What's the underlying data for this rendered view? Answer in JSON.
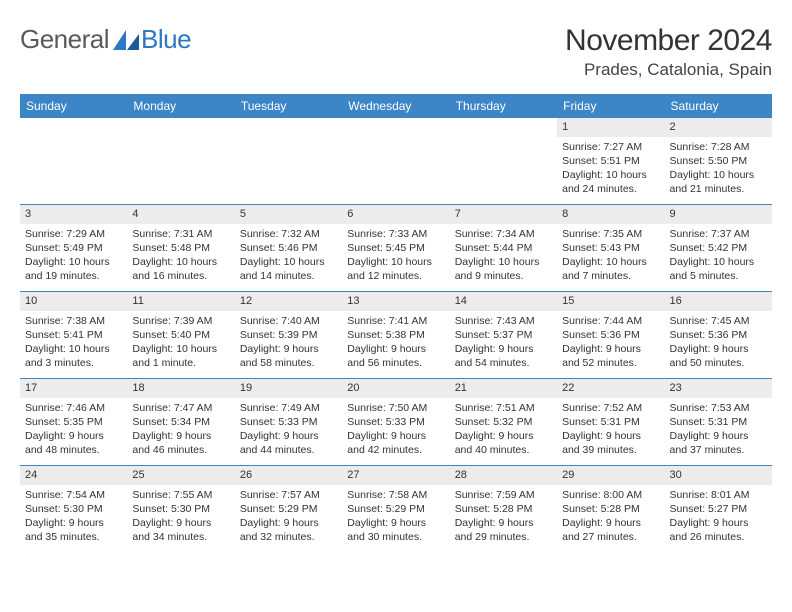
{
  "logo": {
    "text1": "General",
    "text2": "Blue"
  },
  "title": "November 2024",
  "location": "Prades, Catalonia, Spain",
  "colors": {
    "header_bg": "#3c85c6",
    "header_text": "#ffffff",
    "grey_bar": "#ececec",
    "rule": "#3c85c6",
    "body_text": "#333333"
  },
  "dow": [
    "Sunday",
    "Monday",
    "Tuesday",
    "Wednesday",
    "Thursday",
    "Friday",
    "Saturday"
  ],
  "weeks": [
    [
      {
        "n": "",
        "sr": "",
        "ss": "",
        "dl1": "",
        "dl2": ""
      },
      {
        "n": "",
        "sr": "",
        "ss": "",
        "dl1": "",
        "dl2": ""
      },
      {
        "n": "",
        "sr": "",
        "ss": "",
        "dl1": "",
        "dl2": ""
      },
      {
        "n": "",
        "sr": "",
        "ss": "",
        "dl1": "",
        "dl2": ""
      },
      {
        "n": "",
        "sr": "",
        "ss": "",
        "dl1": "",
        "dl2": ""
      },
      {
        "n": "1",
        "sr": "Sunrise: 7:27 AM",
        "ss": "Sunset: 5:51 PM",
        "dl1": "Daylight: 10 hours",
        "dl2": "and 24 minutes."
      },
      {
        "n": "2",
        "sr": "Sunrise: 7:28 AM",
        "ss": "Sunset: 5:50 PM",
        "dl1": "Daylight: 10 hours",
        "dl2": "and 21 minutes."
      }
    ],
    [
      {
        "n": "3",
        "sr": "Sunrise: 7:29 AM",
        "ss": "Sunset: 5:49 PM",
        "dl1": "Daylight: 10 hours",
        "dl2": "and 19 minutes."
      },
      {
        "n": "4",
        "sr": "Sunrise: 7:31 AM",
        "ss": "Sunset: 5:48 PM",
        "dl1": "Daylight: 10 hours",
        "dl2": "and 16 minutes."
      },
      {
        "n": "5",
        "sr": "Sunrise: 7:32 AM",
        "ss": "Sunset: 5:46 PM",
        "dl1": "Daylight: 10 hours",
        "dl2": "and 14 minutes."
      },
      {
        "n": "6",
        "sr": "Sunrise: 7:33 AM",
        "ss": "Sunset: 5:45 PM",
        "dl1": "Daylight: 10 hours",
        "dl2": "and 12 minutes."
      },
      {
        "n": "7",
        "sr": "Sunrise: 7:34 AM",
        "ss": "Sunset: 5:44 PM",
        "dl1": "Daylight: 10 hours",
        "dl2": "and 9 minutes."
      },
      {
        "n": "8",
        "sr": "Sunrise: 7:35 AM",
        "ss": "Sunset: 5:43 PM",
        "dl1": "Daylight: 10 hours",
        "dl2": "and 7 minutes."
      },
      {
        "n": "9",
        "sr": "Sunrise: 7:37 AM",
        "ss": "Sunset: 5:42 PM",
        "dl1": "Daylight: 10 hours",
        "dl2": "and 5 minutes."
      }
    ],
    [
      {
        "n": "10",
        "sr": "Sunrise: 7:38 AM",
        "ss": "Sunset: 5:41 PM",
        "dl1": "Daylight: 10 hours",
        "dl2": "and 3 minutes."
      },
      {
        "n": "11",
        "sr": "Sunrise: 7:39 AM",
        "ss": "Sunset: 5:40 PM",
        "dl1": "Daylight: 10 hours",
        "dl2": "and 1 minute."
      },
      {
        "n": "12",
        "sr": "Sunrise: 7:40 AM",
        "ss": "Sunset: 5:39 PM",
        "dl1": "Daylight: 9 hours",
        "dl2": "and 58 minutes."
      },
      {
        "n": "13",
        "sr": "Sunrise: 7:41 AM",
        "ss": "Sunset: 5:38 PM",
        "dl1": "Daylight: 9 hours",
        "dl2": "and 56 minutes."
      },
      {
        "n": "14",
        "sr": "Sunrise: 7:43 AM",
        "ss": "Sunset: 5:37 PM",
        "dl1": "Daylight: 9 hours",
        "dl2": "and 54 minutes."
      },
      {
        "n": "15",
        "sr": "Sunrise: 7:44 AM",
        "ss": "Sunset: 5:36 PM",
        "dl1": "Daylight: 9 hours",
        "dl2": "and 52 minutes."
      },
      {
        "n": "16",
        "sr": "Sunrise: 7:45 AM",
        "ss": "Sunset: 5:36 PM",
        "dl1": "Daylight: 9 hours",
        "dl2": "and 50 minutes."
      }
    ],
    [
      {
        "n": "17",
        "sr": "Sunrise: 7:46 AM",
        "ss": "Sunset: 5:35 PM",
        "dl1": "Daylight: 9 hours",
        "dl2": "and 48 minutes."
      },
      {
        "n": "18",
        "sr": "Sunrise: 7:47 AM",
        "ss": "Sunset: 5:34 PM",
        "dl1": "Daylight: 9 hours",
        "dl2": "and 46 minutes."
      },
      {
        "n": "19",
        "sr": "Sunrise: 7:49 AM",
        "ss": "Sunset: 5:33 PM",
        "dl1": "Daylight: 9 hours",
        "dl2": "and 44 minutes."
      },
      {
        "n": "20",
        "sr": "Sunrise: 7:50 AM",
        "ss": "Sunset: 5:33 PM",
        "dl1": "Daylight: 9 hours",
        "dl2": "and 42 minutes."
      },
      {
        "n": "21",
        "sr": "Sunrise: 7:51 AM",
        "ss": "Sunset: 5:32 PM",
        "dl1": "Daylight: 9 hours",
        "dl2": "and 40 minutes."
      },
      {
        "n": "22",
        "sr": "Sunrise: 7:52 AM",
        "ss": "Sunset: 5:31 PM",
        "dl1": "Daylight: 9 hours",
        "dl2": "and 39 minutes."
      },
      {
        "n": "23",
        "sr": "Sunrise: 7:53 AM",
        "ss": "Sunset: 5:31 PM",
        "dl1": "Daylight: 9 hours",
        "dl2": "and 37 minutes."
      }
    ],
    [
      {
        "n": "24",
        "sr": "Sunrise: 7:54 AM",
        "ss": "Sunset: 5:30 PM",
        "dl1": "Daylight: 9 hours",
        "dl2": "and 35 minutes."
      },
      {
        "n": "25",
        "sr": "Sunrise: 7:55 AM",
        "ss": "Sunset: 5:30 PM",
        "dl1": "Daylight: 9 hours",
        "dl2": "and 34 minutes."
      },
      {
        "n": "26",
        "sr": "Sunrise: 7:57 AM",
        "ss": "Sunset: 5:29 PM",
        "dl1": "Daylight: 9 hours",
        "dl2": "and 32 minutes."
      },
      {
        "n": "27",
        "sr": "Sunrise: 7:58 AM",
        "ss": "Sunset: 5:29 PM",
        "dl1": "Daylight: 9 hours",
        "dl2": "and 30 minutes."
      },
      {
        "n": "28",
        "sr": "Sunrise: 7:59 AM",
        "ss": "Sunset: 5:28 PM",
        "dl1": "Daylight: 9 hours",
        "dl2": "and 29 minutes."
      },
      {
        "n": "29",
        "sr": "Sunrise: 8:00 AM",
        "ss": "Sunset: 5:28 PM",
        "dl1": "Daylight: 9 hours",
        "dl2": "and 27 minutes."
      },
      {
        "n": "30",
        "sr": "Sunrise: 8:01 AM",
        "ss": "Sunset: 5:27 PM",
        "dl1": "Daylight: 9 hours",
        "dl2": "and 26 minutes."
      }
    ]
  ]
}
